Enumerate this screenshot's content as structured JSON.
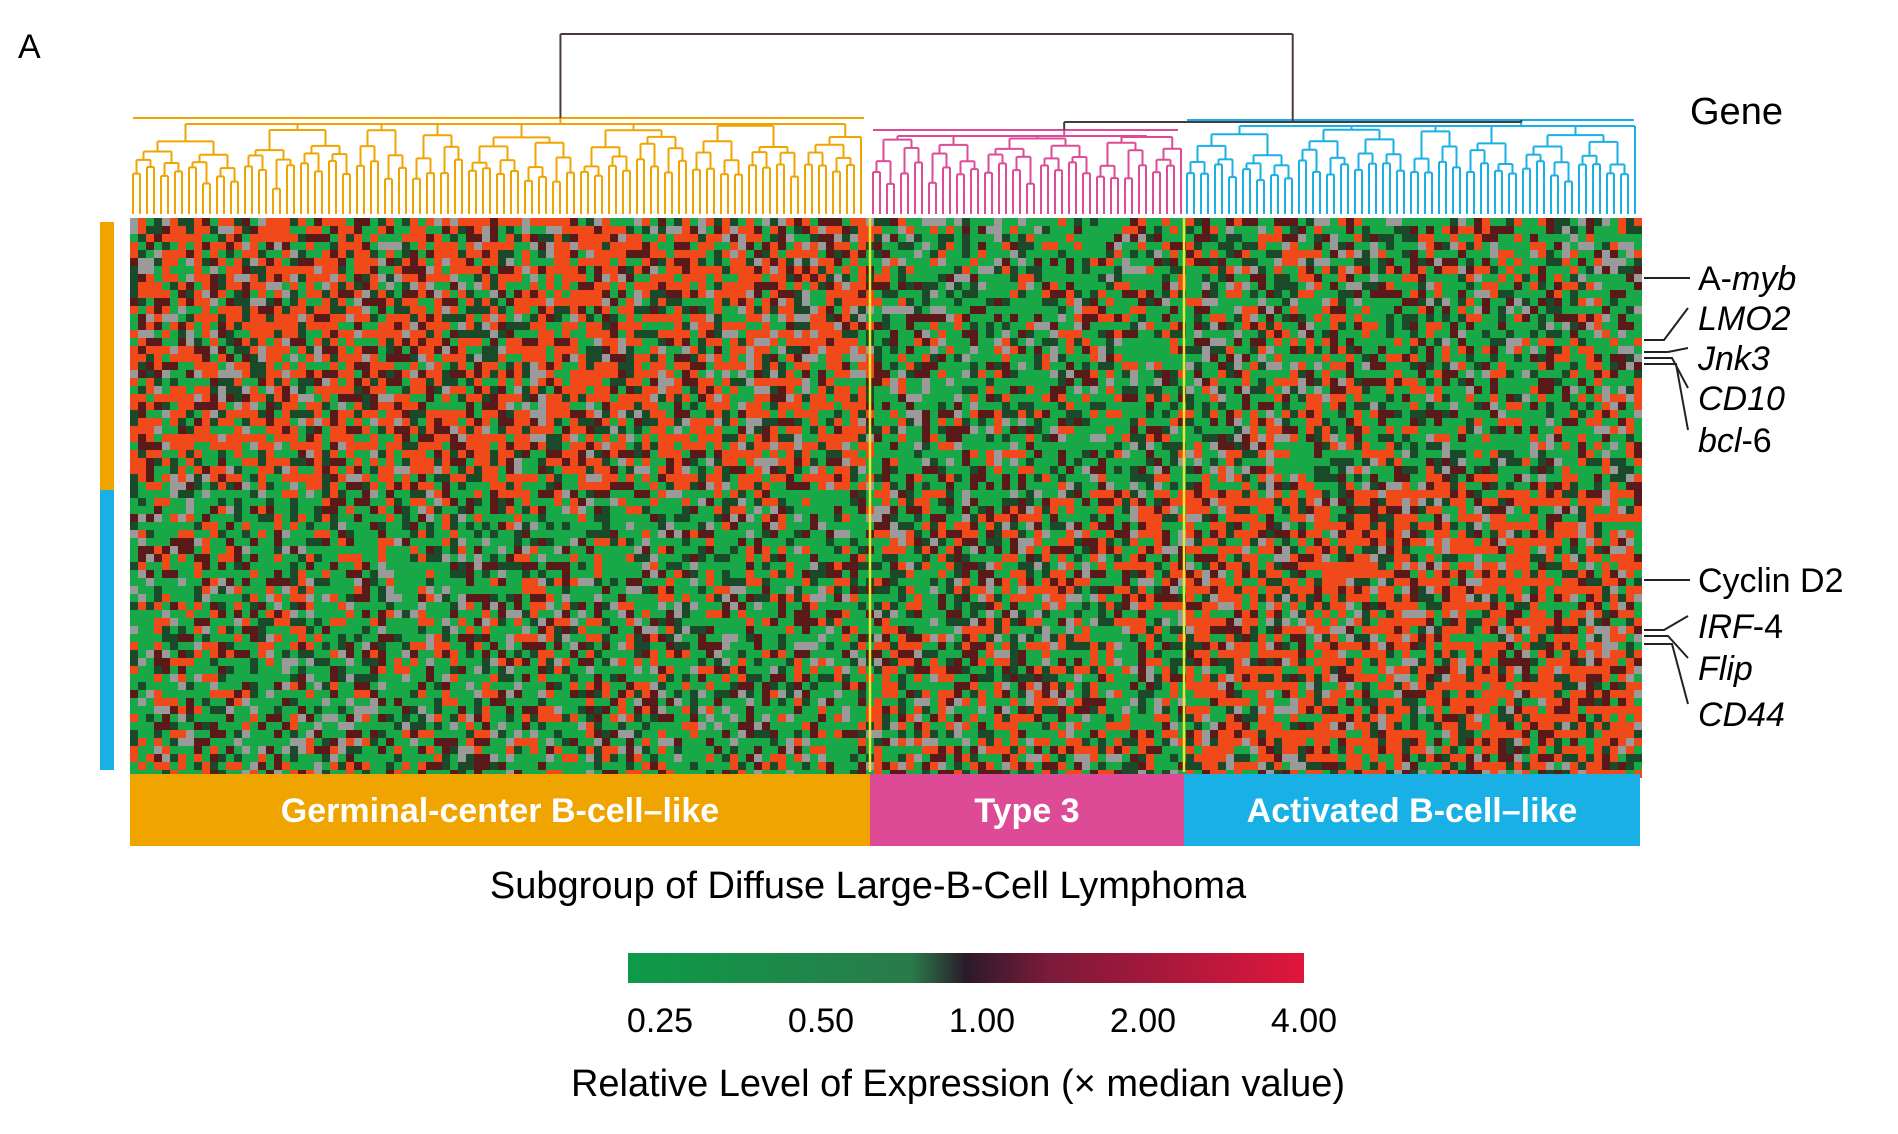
{
  "panel_label": "A",
  "chart_data": {
    "type": "heatmap",
    "title": "",
    "column_dendrogram": true,
    "row_header": "Gene",
    "xlabel": "Subgroup of Diffuse Large-B-Cell Lymphoma",
    "subgroups": [
      {
        "name": "Germinal-center B-cell–like",
        "color": "#f0a400"
      },
      {
        "name": "Type 3",
        "color": "#dd4b96"
      },
      {
        "name": "Activated B-cell–like",
        "color": "#19b0e6"
      }
    ],
    "gene_clusters": [
      {
        "color": "#f0a400"
      },
      {
        "color": "#19b0e6"
      }
    ],
    "gene_labels": [
      {
        "parts": [
          {
            "text": "A-",
            "italic": false
          },
          {
            "text": "myb",
            "italic": true
          }
        ]
      },
      {
        "parts": [
          {
            "text": "LMO2",
            "italic": true
          }
        ]
      },
      {
        "parts": [
          {
            "text": "Jnk3",
            "italic": true
          }
        ]
      },
      {
        "parts": [
          {
            "text": "CD10",
            "italic": true
          }
        ]
      },
      {
        "parts": [
          {
            "text": "bcl",
            "italic": true
          },
          {
            "text": "-6",
            "italic": false
          }
        ]
      },
      {
        "parts": [
          {
            "text": "Cyclin D2",
            "italic": false
          }
        ]
      },
      {
        "parts": [
          {
            "text": "IRF",
            "italic": true
          },
          {
            "text": "-4",
            "italic": false
          }
        ]
      },
      {
        "parts": [
          {
            "text": "Flip",
            "italic": true
          }
        ]
      },
      {
        "parts": [
          {
            "text": "CD44",
            "italic": true
          }
        ]
      }
    ],
    "colorbar": {
      "title": "Relative Level of Expression (× median value)",
      "ticks": [
        "0.25",
        "0.50",
        "1.00",
        "2.00",
        "4.00"
      ],
      "low_color": "#0d9b48",
      "mid_color": "#2a1a2a",
      "high_color": "#e1163c"
    },
    "cell_colors": {
      "high": "#f04a1a",
      "low": "#19a848",
      "missing": "#9a9a9a",
      "dark_red": "#5a1a1a",
      "dark_green": "#1a4a2a"
    },
    "divider_color": "#e8e830"
  }
}
